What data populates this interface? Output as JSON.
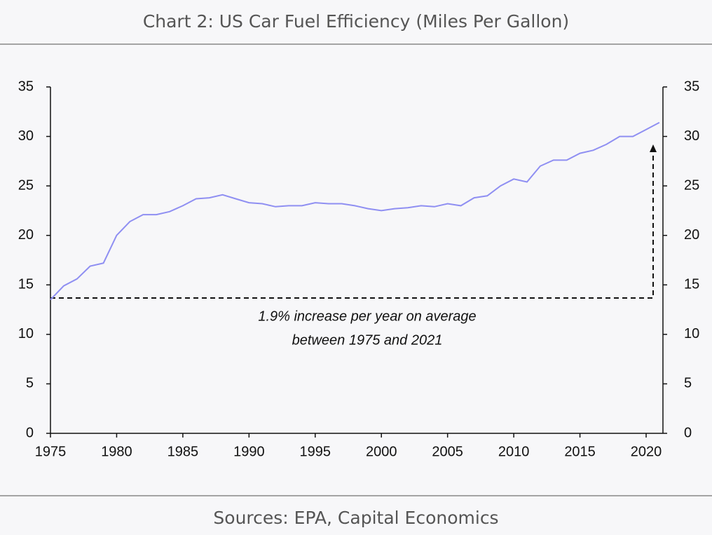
{
  "chart_data": {
    "type": "line",
    "title": "Chart 2: US Car Fuel Efficiency (Miles Per Gallon)",
    "source": "Sources: EPA, Capital Economics",
    "annotation": [
      "1.9% increase per year on average",
      "between 1975 and 2021"
    ],
    "x": [
      1975,
      1976,
      1977,
      1978,
      1979,
      1980,
      1981,
      1982,
      1983,
      1984,
      1985,
      1986,
      1987,
      1988,
      1989,
      1990,
      1991,
      1992,
      1993,
      1994,
      1995,
      1996,
      1997,
      1998,
      1999,
      2000,
      2001,
      2002,
      2003,
      2004,
      2005,
      2006,
      2007,
      2008,
      2009,
      2010,
      2011,
      2012,
      2013,
      2014,
      2015,
      2016,
      2017,
      2018,
      2019,
      2020,
      2021
    ],
    "series": [
      {
        "name": "US car fuel efficiency",
        "color": "#8f8ff2",
        "values": [
          13.5,
          14.9,
          15.6,
          16.9,
          17.2,
          20.0,
          21.4,
          22.1,
          22.1,
          22.4,
          23.0,
          23.7,
          23.8,
          24.1,
          23.7,
          23.3,
          23.2,
          22.9,
          23.0,
          23.0,
          23.3,
          23.2,
          23.2,
          23.0,
          22.7,
          22.5,
          22.7,
          22.8,
          23.0,
          22.9,
          23.2,
          23.0,
          23.8,
          24.0,
          25.0,
          25.7,
          25.4,
          27.0,
          27.6,
          27.6,
          28.3,
          28.6,
          29.2,
          30.0,
          30.0,
          30.7,
          31.4
        ]
      }
    ],
    "xlim": [
      1975,
      2021.27
    ],
    "xticks": [
      1975,
      1980,
      1985,
      1990,
      1995,
      2000,
      2005,
      2010,
      2015,
      2020
    ],
    "ylim": [
      0,
      35
    ],
    "yticks": [
      0,
      5,
      10,
      15,
      20,
      25,
      30,
      35
    ],
    "y2lim": [
      0,
      35
    ],
    "y2ticks": [
      0,
      5,
      10,
      15,
      20,
      25,
      30,
      35
    ]
  }
}
